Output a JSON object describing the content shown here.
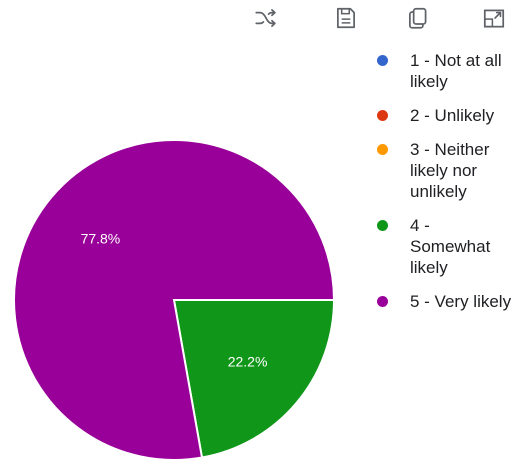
{
  "toolbar": {
    "icons": [
      "shuffle-icon",
      "save-icon",
      "copy-icon",
      "expand-icon"
    ]
  },
  "chart_data": {
    "type": "pie",
    "title": "",
    "slices": [
      {
        "label": "1 - Not at all likely",
        "value": 0,
        "color": "#3366cc"
      },
      {
        "label": "2 - Unlikely",
        "value": 0,
        "color": "#dc3912"
      },
      {
        "label": "3 - Neither likely nor unlikely",
        "value": 0,
        "color": "#ff9900"
      },
      {
        "label": "4 - Somewhat likely",
        "value": 22.2,
        "color": "#109618",
        "display": "22.2%"
      },
      {
        "label": "5 - Very likely",
        "value": 77.8,
        "color": "#990099",
        "display": "77.8%"
      }
    ],
    "legend_position": "right"
  },
  "legend": {
    "items": [
      {
        "label": "1 - Not at all likely",
        "color": "#3366cc"
      },
      {
        "label": "2 - Unlikely",
        "color": "#dc3912"
      },
      {
        "label": "3 - Neither likely nor unlikely",
        "color": "#ff9900"
      },
      {
        "label": "4 - Somewhat likely",
        "color": "#109618"
      },
      {
        "label": "5 - Very likely",
        "color": "#990099"
      }
    ]
  }
}
